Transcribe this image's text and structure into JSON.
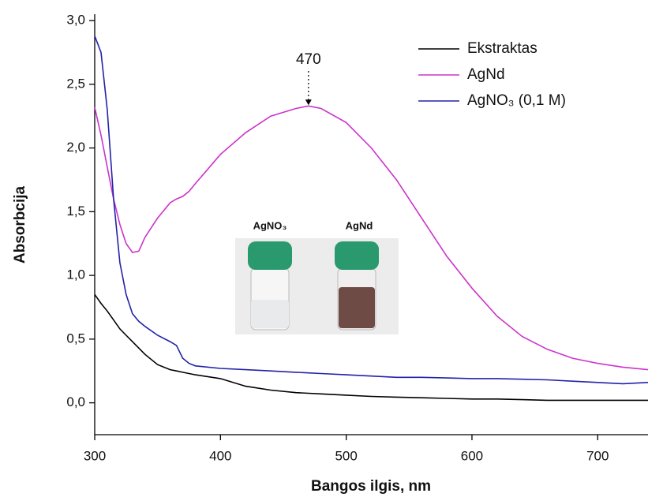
{
  "chart_data": {
    "type": "line",
    "xlabel": "Bangos ilgis, nm",
    "ylabel": "Absorbcija",
    "x": [
      300,
      305,
      310,
      315,
      320,
      325,
      330,
      335,
      340,
      350,
      360,
      365,
      370,
      375,
      380,
      400,
      420,
      440,
      460,
      470,
      480,
      500,
      520,
      540,
      560,
      580,
      600,
      620,
      640,
      660,
      680,
      700,
      720,
      740
    ],
    "series": [
      {
        "name": "Ekstraktas",
        "color": "#000000",
        "values": [
          0.85,
          0.78,
          0.72,
          0.65,
          0.58,
          0.53,
          0.48,
          0.43,
          0.38,
          0.3,
          0.26,
          0.25,
          0.24,
          0.23,
          0.22,
          0.19,
          0.13,
          0.1,
          0.08,
          0.075,
          0.07,
          0.06,
          0.05,
          0.045,
          0.04,
          0.035,
          0.03,
          0.03,
          0.025,
          0.02,
          0.02,
          0.02,
          0.02,
          0.02
        ]
      },
      {
        "name": "AgNd",
        "color": "#cc33cc",
        "values": [
          2.32,
          2.1,
          1.85,
          1.6,
          1.4,
          1.25,
          1.18,
          1.19,
          1.3,
          1.45,
          1.57,
          1.6,
          1.62,
          1.66,
          1.72,
          1.95,
          2.12,
          2.25,
          2.31,
          2.33,
          2.31,
          2.2,
          2.0,
          1.75,
          1.45,
          1.15,
          0.9,
          0.68,
          0.52,
          0.42,
          0.35,
          0.31,
          0.28,
          0.26
        ]
      },
      {
        "name": "AgNO₃ (0,1 M)",
        "color": "#2222aa",
        "values": [
          2.88,
          2.75,
          2.3,
          1.6,
          1.1,
          0.85,
          0.7,
          0.64,
          0.6,
          0.53,
          0.48,
          0.45,
          0.35,
          0.31,
          0.29,
          0.27,
          0.26,
          0.25,
          0.24,
          0.235,
          0.23,
          0.22,
          0.21,
          0.2,
          0.2,
          0.195,
          0.19,
          0.19,
          0.185,
          0.18,
          0.17,
          0.16,
          0.15,
          0.16
        ]
      }
    ],
    "xlim": [
      300,
      740
    ],
    "ylim": [
      -0.25,
      3.05
    ],
    "xticks": [
      300,
      400,
      500,
      600,
      700
    ],
    "yticks": [
      {
        "value": 0,
        "label": "0,0"
      },
      {
        "value": 0.5,
        "label": "0,5"
      },
      {
        "value": 1,
        "label": "1,0"
      },
      {
        "value": 1.5,
        "label": "1,5"
      },
      {
        "value": 2,
        "label": "2,0"
      },
      {
        "value": 2.5,
        "label": "2,5"
      },
      {
        "value": 3,
        "label": "3,0"
      }
    ],
    "annotation": {
      "text": "470",
      "x": 470,
      "y": 2.33
    },
    "legend": "upper right",
    "inset_labels": [
      "AgNO₃",
      "AgNd"
    ]
  }
}
